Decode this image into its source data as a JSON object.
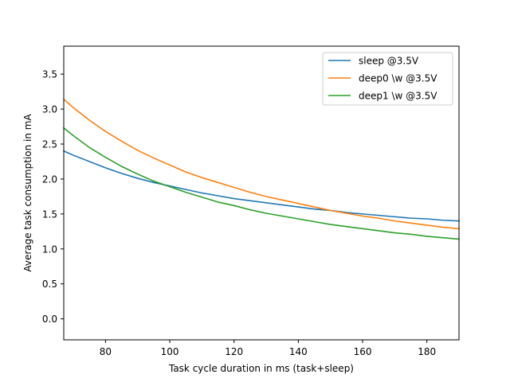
{
  "chart_data": {
    "type": "line",
    "title": "",
    "xlabel": "Task cycle duration in ms (task+sleep)",
    "ylabel": "Average task consumption in mA",
    "xlim": [
      67,
      190
    ],
    "ylim": [
      -0.3,
      3.9
    ],
    "xticks": [
      80,
      100,
      120,
      140,
      160,
      180
    ],
    "yticks": [
      0.0,
      0.5,
      1.0,
      1.5,
      2.0,
      2.5,
      3.0,
      3.5
    ],
    "xtick_labels": [
      "80",
      "100",
      "120",
      "140",
      "160",
      "180"
    ],
    "ytick_labels": [
      "0.0",
      "0.5",
      "1.0",
      "1.5",
      "2.0",
      "2.5",
      "3.0",
      "3.5"
    ],
    "grid": false,
    "legend_position": "top-right",
    "series": [
      {
        "name": "sleep @3.5V",
        "color": "#1f77b4",
        "x": [
          67,
          70,
          75,
          80,
          85,
          90,
          95,
          100,
          105,
          110,
          115,
          120,
          125,
          130,
          135,
          140,
          145,
          150,
          155,
          160,
          165,
          170,
          175,
          180,
          185,
          190
        ],
        "y": [
          2.4,
          2.34,
          2.25,
          2.16,
          2.08,
          2.01,
          1.95,
          1.9,
          1.85,
          1.8,
          1.76,
          1.72,
          1.69,
          1.66,
          1.63,
          1.6,
          1.57,
          1.55,
          1.52,
          1.5,
          1.48,
          1.46,
          1.44,
          1.43,
          1.41,
          1.4
        ]
      },
      {
        "name": "deep0 \\w @3.5V",
        "color": "#ff7f0e",
        "x": [
          67,
          70,
          75,
          80,
          85,
          90,
          95,
          100,
          105,
          110,
          115,
          120,
          125,
          130,
          135,
          140,
          145,
          150,
          155,
          160,
          165,
          170,
          175,
          180,
          185,
          190
        ],
        "y": [
          3.14,
          3.02,
          2.84,
          2.68,
          2.54,
          2.41,
          2.3,
          2.2,
          2.1,
          2.02,
          1.95,
          1.88,
          1.81,
          1.75,
          1.7,
          1.65,
          1.6,
          1.55,
          1.51,
          1.47,
          1.44,
          1.4,
          1.37,
          1.34,
          1.31,
          1.29
        ]
      },
      {
        "name": "deep1 \\w @3.5V",
        "color": "#2ca02c",
        "x": [
          67,
          70,
          75,
          80,
          85,
          90,
          95,
          100,
          105,
          110,
          115,
          120,
          125,
          130,
          135,
          140,
          145,
          150,
          155,
          160,
          165,
          170,
          175,
          180,
          185,
          190
        ],
        "y": [
          2.73,
          2.62,
          2.45,
          2.31,
          2.18,
          2.07,
          1.97,
          1.89,
          1.81,
          1.74,
          1.67,
          1.62,
          1.56,
          1.51,
          1.47,
          1.43,
          1.39,
          1.35,
          1.32,
          1.29,
          1.26,
          1.23,
          1.21,
          1.18,
          1.16,
          1.14
        ]
      }
    ]
  }
}
